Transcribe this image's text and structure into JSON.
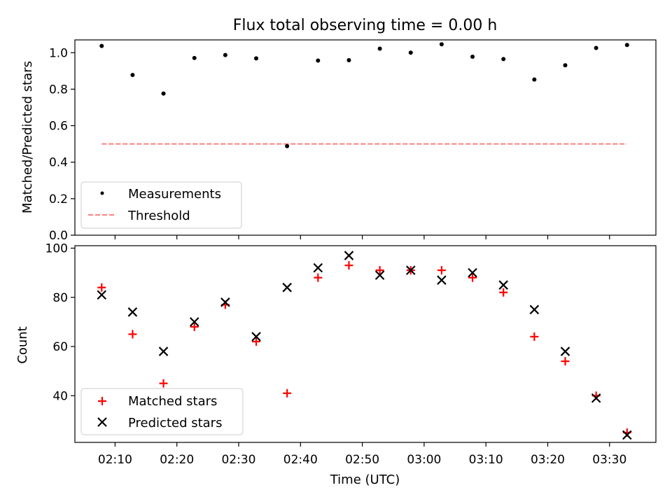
{
  "chart_data": [
    {
      "type": "scatter",
      "title": "Flux total observing time = 0.00 h",
      "xlabel": "",
      "ylabel": "Matched/Predicted stars",
      "ylim": [
        0,
        1.07
      ],
      "yticks": [
        "0.0",
        "0.2",
        "0.4",
        "0.6",
        "0.8",
        "1.0"
      ],
      "ytick_values": [
        0,
        0.2,
        0.4,
        0.6,
        0.8,
        1.0
      ],
      "legend_position": "lower-left",
      "series": [
        {
          "name": "Measurements",
          "marker": "dot",
          "color": "#000000",
          "x": [
            "02:07:50",
            "02:12:50",
            "02:17:50",
            "02:22:50",
            "02:27:50",
            "02:32:50",
            "02:37:50",
            "02:42:50",
            "02:47:50",
            "02:52:50",
            "02:57:50",
            "03:02:50",
            "03:07:50",
            "03:12:50",
            "03:17:50",
            "03:22:50",
            "03:27:50",
            "03:32:50"
          ],
          "y": [
            1.037,
            0.878,
            0.776,
            0.971,
            0.987,
            0.969,
            0.488,
            0.957,
            0.959,
            1.022,
            1.0,
            1.046,
            0.978,
            0.965,
            0.853,
            0.931,
            1.026,
            1.042
          ]
        },
        {
          "name": "Threshold",
          "marker": "dashed-line",
          "color": "#ff7f7f",
          "x": [
            "02:07:50",
            "03:32:50"
          ],
          "y": [
            0.5,
            0.5
          ]
        }
      ]
    },
    {
      "type": "scatter",
      "title": "",
      "xlabel": "Time (UTC)",
      "ylabel": "Count",
      "ylim": [
        21,
        101
      ],
      "yticks": [
        "40",
        "60",
        "80",
        "100"
      ],
      "ytick_values": [
        40,
        60,
        80,
        100
      ],
      "xticks": [
        "02:10",
        "02:20",
        "02:30",
        "02:40",
        "02:50",
        "03:00",
        "03:10",
        "03:20",
        "03:30"
      ],
      "xtick_values": [
        "02:10",
        "02:20",
        "02:30",
        "02:40",
        "02:50",
        "03:00",
        "03:10",
        "03:20",
        "03:30"
      ],
      "xlim": [
        "02:03:30",
        "03:37:30"
      ],
      "legend_position": "lower-left",
      "series": [
        {
          "name": "Matched stars",
          "marker": "plus",
          "color": "#ff0000",
          "x": [
            "02:07:50",
            "02:12:50",
            "02:17:50",
            "02:22:50",
            "02:27:50",
            "02:32:50",
            "02:37:50",
            "02:42:50",
            "02:47:50",
            "02:52:50",
            "02:57:50",
            "03:02:50",
            "03:07:50",
            "03:12:50",
            "03:17:50",
            "03:22:50",
            "03:27:50",
            "03:32:50"
          ],
          "y": [
            84,
            65,
            45,
            68,
            77,
            62,
            41,
            88,
            93,
            91,
            91,
            91,
            88,
            82,
            64,
            54,
            40,
            25
          ]
        },
        {
          "name": "Predicted stars",
          "marker": "x",
          "color": "#000000",
          "x": [
            "02:07:50",
            "02:12:50",
            "02:17:50",
            "02:22:50",
            "02:27:50",
            "02:32:50",
            "02:37:50",
            "02:42:50",
            "02:47:50",
            "02:52:50",
            "02:57:50",
            "03:02:50",
            "03:07:50",
            "03:12:50",
            "03:17:50",
            "03:22:50",
            "03:27:50",
            "03:32:50"
          ],
          "y": [
            81,
            74,
            58,
            70,
            78,
            64,
            84,
            92,
            97,
            89,
            91,
            87,
            90,
            85,
            75,
            58,
            39,
            24
          ]
        }
      ]
    }
  ]
}
